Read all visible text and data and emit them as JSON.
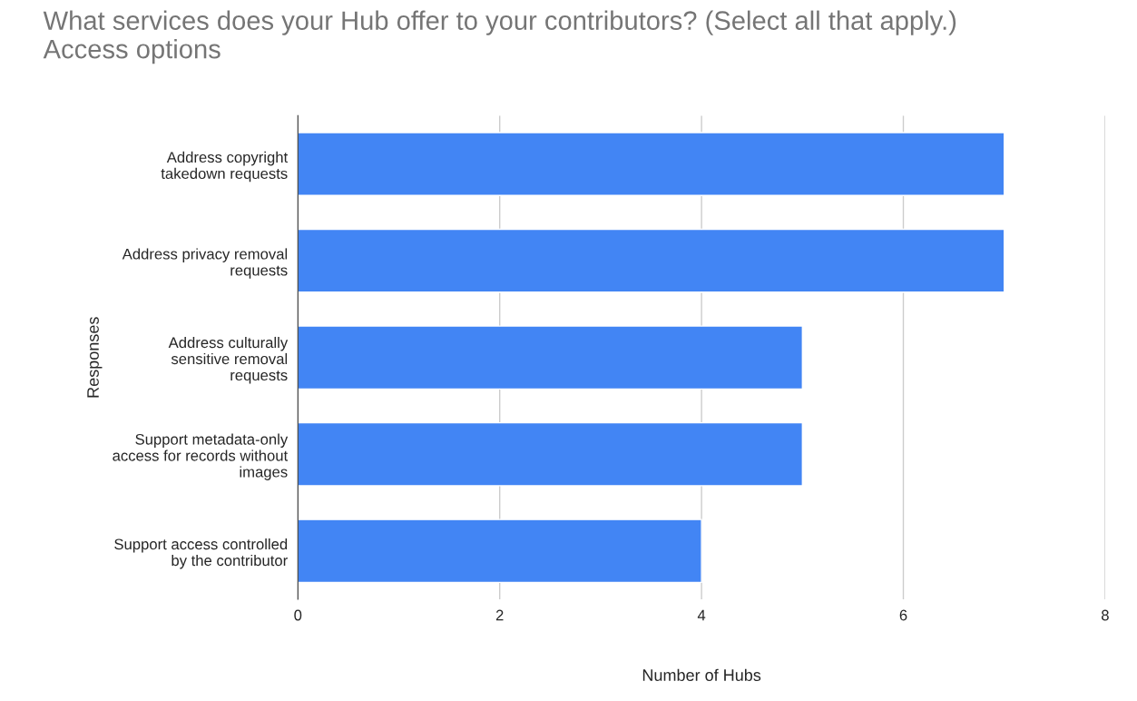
{
  "chart_data": {
    "type": "bar",
    "orientation": "horizontal",
    "title": "What services does your Hub offer to your contributors? (Select all that apply.)\nAccess options",
    "xlabel": "Number of Hubs",
    "ylabel": "Responses",
    "categories": [
      "Address copyright\ntakedown requests",
      "Address privacy removal\nrequests",
      "Address culturally\nsensitive removal\nrequests",
      "Support metadata-only\naccess for records without\nimages",
      "Support access controlled\nby the contributor"
    ],
    "values": [
      7,
      7,
      5,
      5,
      4
    ],
    "color": "#4285f4",
    "xlim": [
      0,
      8
    ],
    "xticks": [
      0,
      2,
      4,
      6,
      8
    ],
    "grid": "x",
    "legend": false
  }
}
